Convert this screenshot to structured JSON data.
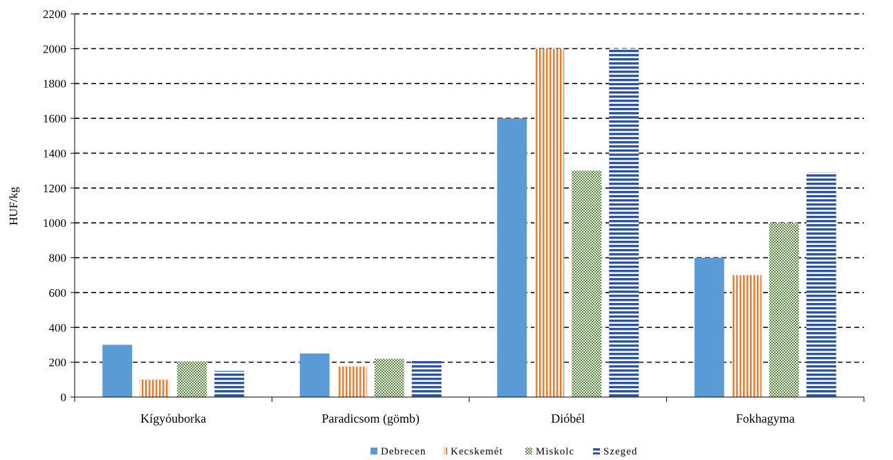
{
  "chart_data": {
    "type": "bar",
    "title": "",
    "xlabel": "",
    "ylabel": "HUF/kg",
    "ylim": [
      0,
      2200
    ],
    "yticks": [
      0,
      200,
      400,
      600,
      800,
      1000,
      1200,
      1400,
      1600,
      1800,
      2000,
      2200
    ],
    "grid": "horizontal dashed",
    "legend_position": "bottom",
    "categories": [
      "Kígyóuborka",
      "Paradicsom (gömb)",
      "Dióbél",
      "Fokhagyma"
    ],
    "series": [
      {
        "name": "Debrecen",
        "values": [
          300,
          250,
          1600,
          800
        ],
        "color": "#5b9bd5",
        "pattern": "solid"
      },
      {
        "name": "Kecskemét",
        "values": [
          100,
          175,
          2000,
          700
        ],
        "color": "#ed7d31",
        "pattern": "vertical-stripes"
      },
      {
        "name": "Miskolc",
        "values": [
          205,
          220,
          1300,
          1000
        ],
        "color": "#548235",
        "pattern": "checker"
      },
      {
        "name": "Szeged",
        "values": [
          150,
          215,
          2000,
          1290
        ],
        "color": "#2f5597",
        "pattern": "horizontal-stripes"
      }
    ]
  }
}
